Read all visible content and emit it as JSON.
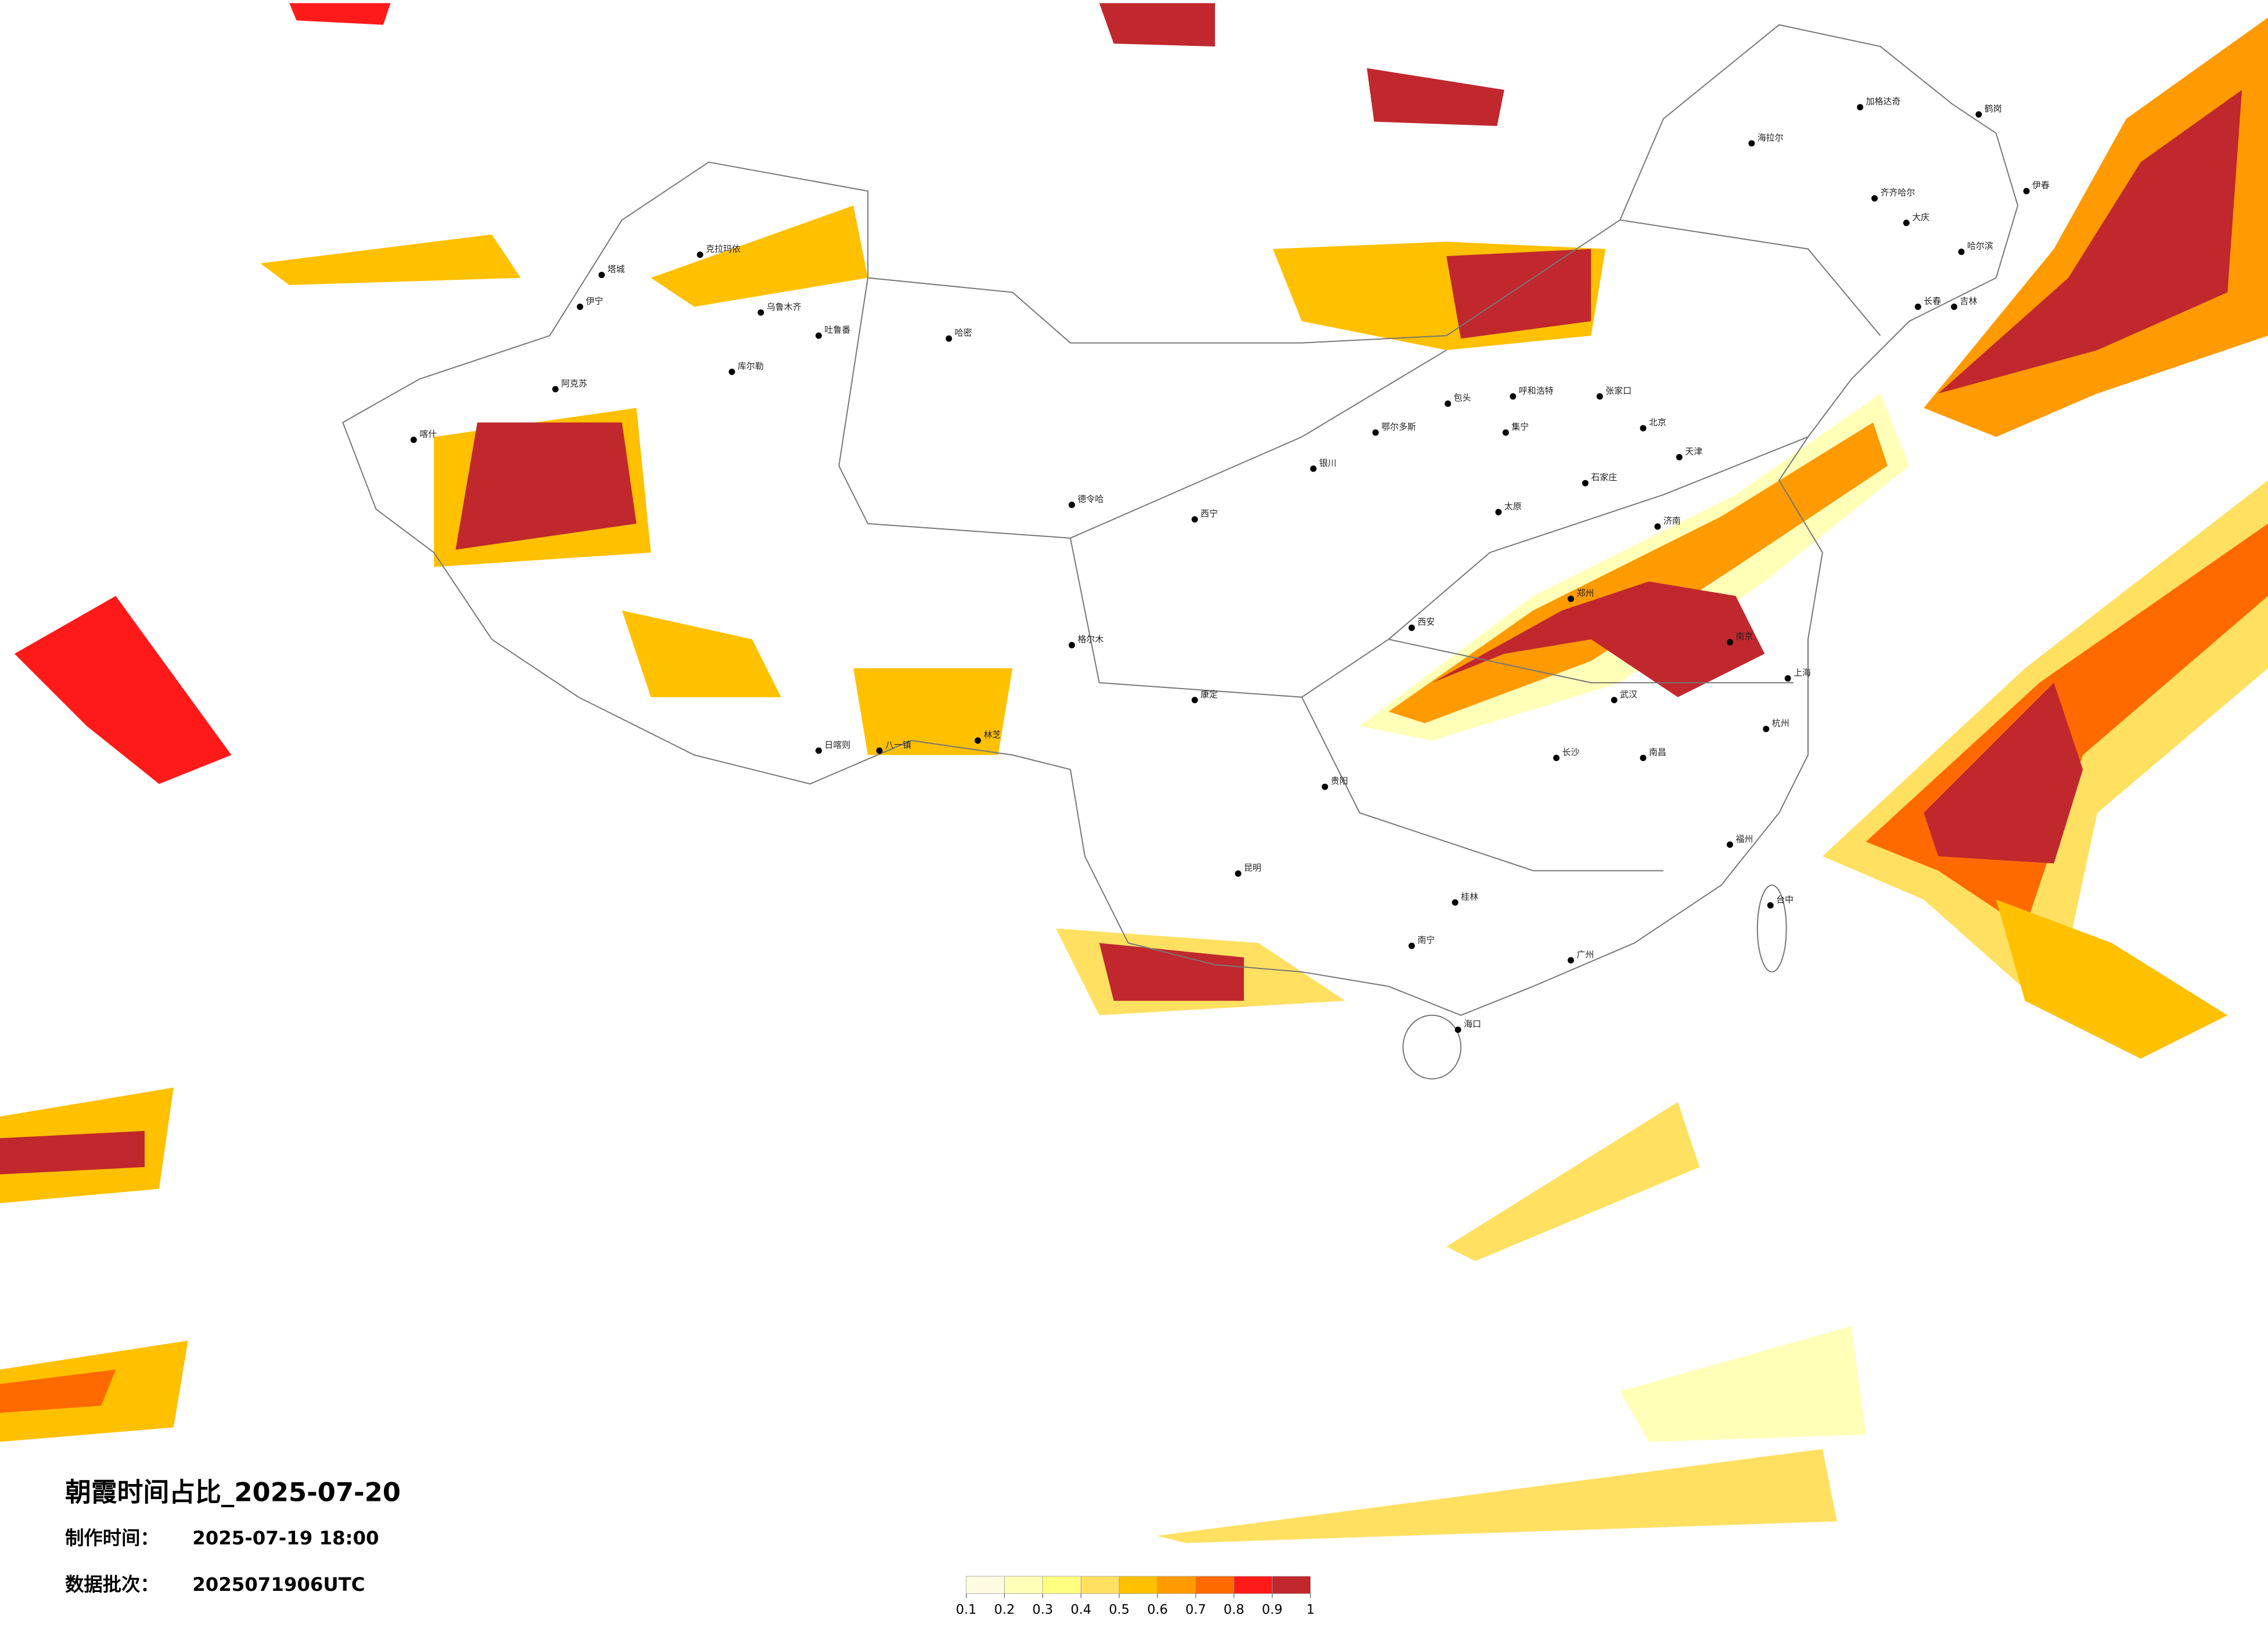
{
  "header": {
    "title": "朝霞时间占比_2025-07-20",
    "made_label": "制作时间：",
    "made_time": "2025-07-19 18:00",
    "batch_label": "数据批次：",
    "batch": "2025071906UTC"
  },
  "legend": {
    "colors": [
      "#fffbe0",
      "#ffffb8",
      "#ffff80",
      "#ffe060",
      "#ffc000",
      "#ff9a00",
      "#ff6a00",
      "#ff1a1a",
      "#c0282d"
    ],
    "ticks": [
      0.1,
      0.2,
      0.3,
      0.4,
      0.5,
      0.6,
      0.7,
      0.8,
      0.9,
      1
    ]
  },
  "cities": [
    "克拉玛依",
    "乌鲁木齐",
    "吐鲁番",
    "哈密",
    "库尔勒",
    "阿克苏",
    "喀什",
    "伊宁",
    "塔城",
    "日喀则",
    "林芝",
    "八一镇",
    "西宁",
    "格尔木",
    "德令哈",
    "呼和浩特",
    "张家口",
    "北京",
    "天津",
    "石家庄",
    "太原",
    "郑州",
    "西安",
    "济南",
    "南京",
    "上海",
    "杭州",
    "武汉",
    "长沙",
    "南昌",
    "福州",
    "广州",
    "南宁",
    "昆明",
    "贵阳",
    "海口",
    "台中",
    "海拉尔",
    "齐齐哈尔",
    "大庆",
    "哈尔滨",
    "长春",
    "吉林",
    "伊春",
    "加格达奇",
    "鹤岗",
    "银川",
    "包头",
    "集宁",
    "鄂尔多斯",
    "康定",
    "桂林"
  ]
}
